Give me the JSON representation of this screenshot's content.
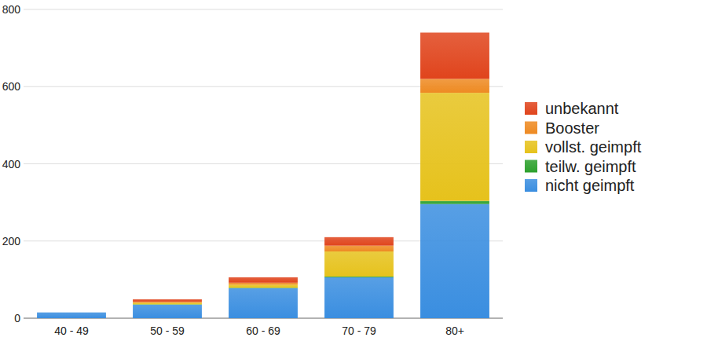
{
  "chart_data": {
    "type": "bar",
    "stacked": true,
    "grid": true,
    "legend": "right",
    "categories": [
      "40 - 49",
      "50 - 59",
      "60 - 69",
      "70 - 79",
      "80+"
    ],
    "series": [
      {
        "name": "nicht geimpft",
        "color": "#3a8ee0",
        "values": [
          15,
          35,
          78,
          106,
          296
        ]
      },
      {
        "name": "teilw. geimpft",
        "color": "#2ca02c",
        "values": [
          0,
          1,
          1,
          2,
          8
        ]
      },
      {
        "name": "vollst. geimpft",
        "color": "#e6c21c",
        "values": [
          0,
          4,
          8,
          65,
          280
        ]
      },
      {
        "name": "Booster",
        "color": "#ee8a22",
        "values": [
          0,
          3,
          5,
          15,
          36
        ]
      },
      {
        "name": "unbekannt",
        "color": "#e0441c",
        "values": [
          0,
          6,
          14,
          22,
          120
        ]
      }
    ],
    "ylim": [
      0,
      800
    ],
    "yticks": [
      0,
      200,
      400,
      600,
      800
    ]
  }
}
